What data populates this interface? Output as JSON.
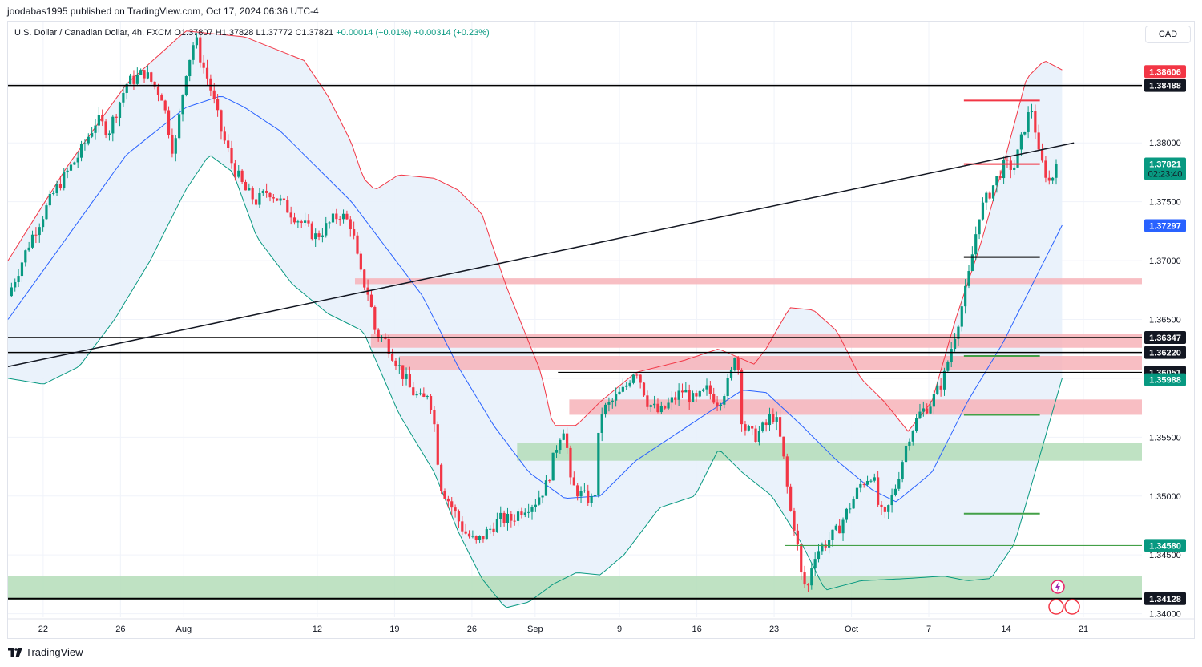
{
  "publisher": "joodabas1995 published on TradingView.com, Oct 17, 2024 06:36 UTC-4",
  "legend": {
    "symbol": "U.S. Dollar / Canadian Dollar, 4h, FXCM",
    "open": "O1.37807",
    "high": "H1.37828",
    "low": "L1.37772",
    "close": "C1.37821",
    "change": "+0.00014 (+0.01%)",
    "change2": "+0.00314 (+0.23%)"
  },
  "currency_button": "CAD",
  "footer_brand": "TradingView",
  "icons": [
    "tradingview-logo-icon",
    "flash-icon",
    "us-flag-icon",
    "us-flag-icon"
  ],
  "colors": {
    "bull": "#089981",
    "bear": "#f23645",
    "upper_band": "#f23645",
    "mid_band": "#2962ff",
    "lower_band": "#089981",
    "band_fill": "#e8f1fb",
    "resistance_zone": "#f7b3b8",
    "support_zone": "#b4ddb8",
    "level_line": "#000000",
    "green_line": "#43a047",
    "red_line": "#f23645"
  },
  "chart_data": {
    "type": "candlestick",
    "symbol": "USDCAD",
    "timeframe": "4h",
    "ylim": [
      1.3397,
      1.3903
    ],
    "y_ticks": [
      "1.38000",
      "1.37500",
      "1.37000",
      "1.36500",
      "1.35500",
      "1.35000",
      "1.34500",
      "1.34000"
    ],
    "x_ticks": [
      {
        "label": "22",
        "t": 0.05
      },
      {
        "label": "26",
        "t": 0.16
      },
      {
        "label": "Aug",
        "t": 0.25
      },
      {
        "label": "12",
        "t": 0.44
      },
      {
        "label": "19",
        "t": 0.55
      },
      {
        "label": "26",
        "t": 0.66
      },
      {
        "label": "Sep",
        "t": 0.75
      },
      {
        "label": "9",
        "t": 0.87
      },
      {
        "label": "16",
        "t": 0.98
      },
      {
        "label": "23",
        "t": 1.09
      },
      {
        "label": "Oct",
        "t": 1.2
      },
      {
        "label": "7",
        "t": 1.31
      },
      {
        "label": "14",
        "t": 1.42
      },
      {
        "label": "21",
        "t": 1.53
      }
    ],
    "price_labels": [
      {
        "text": "1.38606",
        "value": 1.38606,
        "bg": "#f23645",
        "fg": "#ffffff"
      },
      {
        "text": "1.38488",
        "value": 1.38488,
        "bg": "#131722",
        "fg": "#ffffff"
      },
      {
        "text": "1.37821",
        "sub": "02:23:40",
        "value": 1.37821,
        "bg": "#089981",
        "fg": "#ffffff"
      },
      {
        "text": "1.37297",
        "value": 1.37297,
        "bg": "#2962ff",
        "fg": "#ffffff"
      },
      {
        "text": "1.36347",
        "value": 1.36347,
        "bg": "#131722",
        "fg": "#ffffff"
      },
      {
        "text": "1.36220",
        "value": 1.3622,
        "bg": "#131722",
        "fg": "#ffffff"
      },
      {
        "text": "1.36051",
        "value": 1.36051,
        "bg": "#131722",
        "fg": "#ffffff"
      },
      {
        "text": "1.35988",
        "value": 1.35988,
        "bg": "#089981",
        "fg": "#ffffff"
      },
      {
        "text": "1.34580",
        "value": 1.3458,
        "bg": "#089981",
        "fg": "#ffffff"
      },
      {
        "text": "1.34128",
        "value": 1.34128,
        "bg": "#131722",
        "fg": "#ffffff"
      }
    ],
    "horizontal_levels": [
      {
        "value": 1.38488,
        "t0": 0.0,
        "t1": 1.0,
        "color": "#000000",
        "width": 1.5
      },
      {
        "value": 1.36347,
        "t0": 0.0,
        "t1": 1.0,
        "color": "#000000",
        "width": 1.5
      },
      {
        "value": 1.3622,
        "t0": 0.0,
        "t1": 1.0,
        "color": "#000000",
        "width": 1.5
      },
      {
        "value": 1.36051,
        "t0": 0.485,
        "t1": 1.0,
        "color": "#000000",
        "width": 1.2
      },
      {
        "value": 1.34128,
        "t0": 0.0,
        "t1": 1.0,
        "color": "#000000",
        "width": 2
      },
      {
        "value": 1.3458,
        "t0": 0.685,
        "t1": 1.0,
        "color": "#43a047",
        "width": 1.2
      },
      {
        "value": 1.3836,
        "t0": 0.843,
        "t1": 0.91,
        "color": "#f23645",
        "width": 2
      },
      {
        "value": 1.3782,
        "t0": 0.843,
        "t1": 0.91,
        "color": "#f23645",
        "width": 2
      },
      {
        "value": 1.3703,
        "t0": 0.843,
        "t1": 0.91,
        "color": "#000000",
        "width": 2
      },
      {
        "value": 1.3619,
        "t0": 0.843,
        "t1": 0.91,
        "color": "#43a047",
        "width": 2
      },
      {
        "value": 1.3569,
        "t0": 0.843,
        "t1": 0.91,
        "color": "#43a047",
        "width": 2
      },
      {
        "value": 1.3485,
        "t0": 0.843,
        "t1": 0.91,
        "color": "#43a047",
        "width": 2
      }
    ],
    "zones": [
      {
        "kind": "resistance",
        "top": 1.3685,
        "bottom": 1.368,
        "t0": 0.306,
        "t1": 1.0
      },
      {
        "kind": "resistance",
        "top": 1.3638,
        "bottom": 1.3626,
        "t0": 0.32,
        "t1": 1.0
      },
      {
        "kind": "resistance",
        "top": 1.3619,
        "bottom": 1.3607,
        "t0": 0.345,
        "t1": 1.0
      },
      {
        "kind": "resistance",
        "top": 1.3582,
        "bottom": 1.3569,
        "t0": 0.495,
        "t1": 1.0
      },
      {
        "kind": "support",
        "top": 1.3545,
        "bottom": 1.353,
        "t0": 0.449,
        "t1": 1.0
      },
      {
        "kind": "support",
        "top": 1.3432,
        "bottom": 1.3412,
        "t0": 0.0,
        "t1": 1.0
      }
    ],
    "trendline": {
      "p0": [
        0.0,
        1.361
      ],
      "p1": [
        0.9,
        1.38
      ]
    },
    "candles_close_path": [
      [
        0.0,
        1.367
      ],
      [
        0.02,
        1.372
      ],
      [
        0.04,
        1.376
      ],
      [
        0.06,
        1.379
      ],
      [
        0.075,
        1.382
      ],
      [
        0.085,
        1.381
      ],
      [
        0.1,
        1.385
      ],
      [
        0.115,
        1.386
      ],
      [
        0.13,
        1.384
      ],
      [
        0.14,
        1.379
      ],
      [
        0.15,
        1.386
      ],
      [
        0.158,
        1.389
      ],
      [
        0.163,
        1.387
      ],
      [
        0.17,
        1.385
      ],
      [
        0.18,
        1.381
      ],
      [
        0.19,
        1.378
      ],
      [
        0.2,
        1.376
      ],
      [
        0.21,
        1.375
      ],
      [
        0.22,
        1.376
      ],
      [
        0.23,
        1.375
      ],
      [
        0.24,
        1.374
      ],
      [
        0.25,
        1.373
      ],
      [
        0.26,
        1.372
      ],
      [
        0.27,
        1.373
      ],
      [
        0.28,
        1.374
      ],
      [
        0.29,
        1.373
      ],
      [
        0.297,
        1.369
      ],
      [
        0.305,
        1.367
      ],
      [
        0.31,
        1.364
      ],
      [
        0.32,
        1.363
      ],
      [
        0.33,
        1.361
      ],
      [
        0.34,
        1.359
      ],
      [
        0.35,
        1.358
      ],
      [
        0.355,
        1.359
      ],
      [
        0.36,
        1.356
      ],
      [
        0.365,
        1.351
      ],
      [
        0.375,
        1.349
      ],
      [
        0.385,
        1.347
      ],
      [
        0.395,
        1.346
      ],
      [
        0.405,
        1.347
      ],
      [
        0.415,
        1.348
      ],
      [
        0.425,
        1.348
      ],
      [
        0.435,
        1.349
      ],
      [
        0.445,
        1.3495
      ],
      [
        0.455,
        1.351
      ],
      [
        0.465,
        1.355
      ],
      [
        0.47,
        1.356
      ],
      [
        0.475,
        1.351
      ],
      [
        0.485,
        1.35
      ],
      [
        0.495,
        1.3495
      ],
      [
        0.5,
        1.357
      ],
      [
        0.51,
        1.358
      ],
      [
        0.52,
        1.359
      ],
      [
        0.53,
        1.361
      ],
      [
        0.54,
        1.358
      ],
      [
        0.55,
        1.357
      ],
      [
        0.56,
        1.358
      ],
      [
        0.57,
        1.359
      ],
      [
        0.58,
        1.358
      ],
      [
        0.59,
        1.359
      ],
      [
        0.6,
        1.358
      ],
      [
        0.61,
        1.36
      ],
      [
        0.615,
        1.363
      ],
      [
        0.62,
        1.356
      ],
      [
        0.63,
        1.355
      ],
      [
        0.64,
        1.356
      ],
      [
        0.645,
        1.357
      ],
      [
        0.65,
        1.356
      ],
      [
        0.655,
        1.353
      ],
      [
        0.66,
        1.349
      ],
      [
        0.665,
        1.347
      ],
      [
        0.67,
        1.343
      ],
      [
        0.675,
        1.342
      ],
      [
        0.68,
        1.345
      ],
      [
        0.69,
        1.346
      ],
      [
        0.7,
        1.347
      ],
      [
        0.71,
        1.349
      ],
      [
        0.72,
        1.351
      ],
      [
        0.73,
        1.352
      ],
      [
        0.735,
        1.349
      ],
      [
        0.74,
        1.348
      ],
      [
        0.75,
        1.351
      ],
      [
        0.76,
        1.355
      ],
      [
        0.77,
        1.357
      ],
      [
        0.78,
        1.358
      ],
      [
        0.79,
        1.36
      ],
      [
        0.8,
        1.364
      ],
      [
        0.81,
        1.368
      ],
      [
        0.815,
        1.371
      ],
      [
        0.82,
        1.374
      ],
      [
        0.83,
        1.376
      ],
      [
        0.84,
        1.378
      ],
      [
        0.85,
        1.378
      ],
      [
        0.86,
        1.382
      ],
      [
        0.865,
        1.383
      ],
      [
        0.87,
        1.379
      ],
      [
        0.88,
        1.3765
      ],
      [
        0.885,
        1.3782
      ]
    ],
    "bands": {
      "upper": [
        [
          0.0,
          1.37
        ],
        [
          0.05,
          1.378
        ],
        [
          0.1,
          1.385
        ],
        [
          0.15,
          1.3895
        ],
        [
          0.2,
          1.389
        ],
        [
          0.25,
          1.387
        ],
        [
          0.27,
          1.384
        ],
        [
          0.29,
          1.38
        ],
        [
          0.3,
          1.377
        ],
        [
          0.31,
          1.376
        ],
        [
          0.33,
          1.3773
        ],
        [
          0.36,
          1.377
        ],
        [
          0.38,
          1.376
        ],
        [
          0.4,
          1.374
        ],
        [
          0.42,
          1.368
        ],
        [
          0.45,
          1.3605
        ],
        [
          0.46,
          1.356
        ],
        [
          0.48,
          1.356
        ],
        [
          0.5,
          1.358
        ],
        [
          0.53,
          1.3605
        ],
        [
          0.57,
          1.3615
        ],
        [
          0.6,
          1.3625
        ],
        [
          0.63,
          1.3612
        ],
        [
          0.64,
          1.3625
        ],
        [
          0.66,
          1.366
        ],
        [
          0.68,
          1.3658
        ],
        [
          0.7,
          1.364
        ],
        [
          0.72,
          1.36
        ],
        [
          0.74,
          1.358
        ],
        [
          0.76,
          1.3555
        ],
        [
          0.78,
          1.358
        ],
        [
          0.8,
          1.365
        ],
        [
          0.82,
          1.371
        ],
        [
          0.84,
          1.378
        ],
        [
          0.86,
          1.3855
        ],
        [
          0.875,
          1.387
        ],
        [
          0.89,
          1.3862
        ]
      ],
      "mid": [
        [
          0.0,
          1.365
        ],
        [
          0.05,
          1.372
        ],
        [
          0.1,
          1.379
        ],
        [
          0.15,
          1.383
        ],
        [
          0.18,
          1.384
        ],
        [
          0.2,
          1.383
        ],
        [
          0.23,
          1.381
        ],
        [
          0.26,
          1.378
        ],
        [
          0.29,
          1.375
        ],
        [
          0.32,
          1.371
        ],
        [
          0.35,
          1.367
        ],
        [
          0.38,
          1.361
        ],
        [
          0.41,
          1.356
        ],
        [
          0.44,
          1.352
        ],
        [
          0.47,
          1.3498
        ],
        [
          0.5,
          1.35
        ],
        [
          0.53,
          1.353
        ],
        [
          0.56,
          1.355
        ],
        [
          0.59,
          1.357
        ],
        [
          0.62,
          1.359
        ],
        [
          0.64,
          1.3588
        ],
        [
          0.67,
          1.356
        ],
        [
          0.7,
          1.353
        ],
        [
          0.73,
          1.3505
        ],
        [
          0.75,
          1.3495
        ],
        [
          0.78,
          1.352
        ],
        [
          0.81,
          1.358
        ],
        [
          0.84,
          1.363
        ],
        [
          0.865,
          1.368
        ],
        [
          0.89,
          1.373
        ]
      ],
      "lower": [
        [
          0.0,
          1.36
        ],
        [
          0.03,
          1.3595
        ],
        [
          0.06,
          1.361
        ],
        [
          0.09,
          1.365
        ],
        [
          0.12,
          1.37
        ],
        [
          0.15,
          1.376
        ],
        [
          0.17,
          1.379
        ],
        [
          0.19,
          1.3775
        ],
        [
          0.21,
          1.372
        ],
        [
          0.24,
          1.368
        ],
        [
          0.27,
          1.3655
        ],
        [
          0.3,
          1.364
        ],
        [
          0.33,
          1.357
        ],
        [
          0.36,
          1.352
        ],
        [
          0.38,
          1.347
        ],
        [
          0.4,
          1.343
        ],
        [
          0.42,
          1.3405
        ],
        [
          0.44,
          1.341
        ],
        [
          0.46,
          1.3425
        ],
        [
          0.48,
          1.3435
        ],
        [
          0.5,
          1.3433
        ],
        [
          0.52,
          1.345
        ],
        [
          0.55,
          1.349
        ],
        [
          0.58,
          1.35
        ],
        [
          0.6,
          1.354
        ],
        [
          0.62,
          1.352
        ],
        [
          0.645,
          1.35
        ],
        [
          0.67,
          1.346
        ],
        [
          0.69,
          1.342
        ],
        [
          0.72,
          1.3428
        ],
        [
          0.76,
          1.343
        ],
        [
          0.79,
          1.3432
        ],
        [
          0.81,
          1.3428
        ],
        [
          0.83,
          1.343
        ],
        [
          0.85,
          1.346
        ],
        [
          0.87,
          1.353
        ],
        [
          0.89,
          1.36
        ]
      ]
    }
  }
}
